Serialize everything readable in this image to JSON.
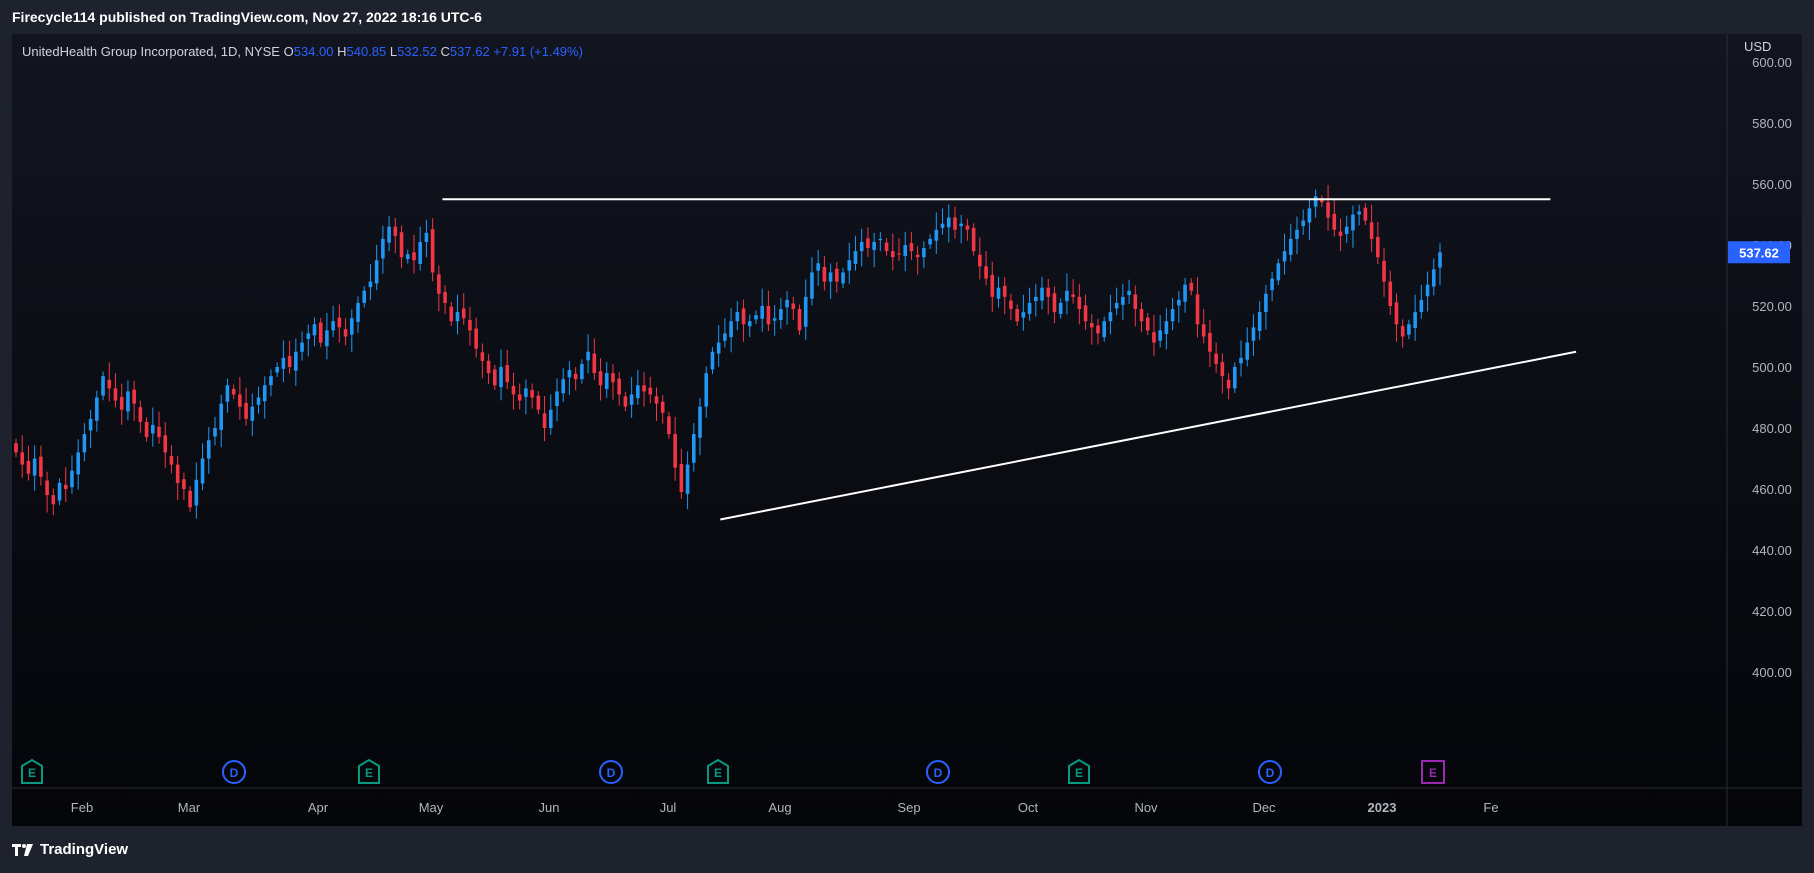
{
  "header": {
    "text": "Firecycle114 published on TradingView.com, Nov 27, 2022 18:16 UTC-6"
  },
  "legend": {
    "symbol": "UnitedHealth Group Incorporated, 1D, NYSE",
    "o_label": "O",
    "o_value": "534.00",
    "h_label": "H",
    "h_value": "540.85",
    "l_label": "L",
    "l_value": "532.52",
    "c_label": "C",
    "c_value": "537.62",
    "change": "+7.91 (+1.49%)"
  },
  "price_axis": {
    "currency": "USD",
    "last_price": "537.62"
  },
  "event_markers": [
    {
      "label": "E",
      "kind": "earnings"
    },
    {
      "label": "D",
      "kind": "dividend"
    },
    {
      "label": "E",
      "kind": "earnings"
    },
    {
      "label": "D",
      "kind": "dividend"
    },
    {
      "label": "E",
      "kind": "earnings"
    },
    {
      "label": "D",
      "kind": "dividend"
    },
    {
      "label": "E",
      "kind": "earnings"
    },
    {
      "label": "D",
      "kind": "dividend"
    },
    {
      "label": "E",
      "kind": "earnings-upcoming"
    }
  ],
  "footer": {
    "brand": "TradingView",
    "logo_icon": "tradingview-logo-icon"
  },
  "colors": {
    "up": "#2196f3",
    "down": "#f23645",
    "accent": "#2962ff",
    "earnings": "#089981",
    "dividend": "#2962ff",
    "upcoming": "#9c27b0",
    "trendline": "#ffffff"
  },
  "chart_data": {
    "type": "candlestick",
    "title": "UnitedHealth Group Incorporated, 1D, NYSE",
    "ylim": [
      400,
      600
    ],
    "y_ticks": [
      "600.00",
      "580.00",
      "560.00",
      "540.00",
      "520.00",
      "500.00",
      "480.00",
      "460.00",
      "440.00",
      "420.00",
      "400.00"
    ],
    "x_tick_labels": [
      "Feb",
      "Mar",
      "Apr",
      "May",
      "Jun",
      "Jul",
      "Aug",
      "Sep",
      "Oct",
      "Nov",
      "Dec",
      "2023",
      "Fe"
    ],
    "grid": false,
    "closes": [
      472,
      468,
      465,
      470,
      464,
      458,
      455,
      462,
      460,
      466,
      472,
      478,
      483,
      490,
      497,
      493,
      489,
      486,
      492,
      488,
      482,
      477,
      481,
      477,
      472,
      468,
      462,
      460,
      454,
      463,
      470,
      476,
      480,
      488,
      494,
      491,
      487,
      483,
      487,
      490,
      494,
      497,
      500,
      503,
      500,
      505,
      508,
      511,
      514,
      508,
      512,
      515,
      513,
      510,
      516,
      521,
      525,
      528,
      535,
      542,
      546,
      543,
      536,
      537,
      535,
      541,
      544,
      531,
      524,
      521,
      515,
      518,
      516,
      512,
      506,
      502,
      498,
      494,
      500,
      495,
      491,
      489,
      493,
      490,
      486,
      480,
      486,
      492,
      496,
      499,
      496,
      501,
      505,
      498,
      494,
      498,
      495,
      491,
      487,
      491,
      494,
      492,
      491,
      488,
      485,
      478,
      467,
      459,
      468,
      478,
      487,
      498,
      505,
      508,
      511,
      515,
      518,
      514,
      515,
      517,
      520,
      514,
      516,
      519,
      522,
      519,
      512,
      523,
      531,
      534,
      528,
      531,
      528,
      531,
      535,
      538,
      541,
      539,
      541,
      542,
      538,
      536,
      537,
      540,
      538,
      536,
      539,
      542,
      545,
      547,
      549,
      545,
      547,
      545,
      538,
      533,
      529,
      523,
      526,
      523,
      519,
      515,
      518,
      521,
      523,
      526,
      523,
      518,
      521,
      525,
      523,
      519,
      515,
      513,
      511,
      515,
      518,
      521,
      523,
      525,
      519,
      515,
      512,
      508,
      512,
      515,
      519,
      522,
      527,
      525,
      514,
      510,
      505,
      501,
      497,
      493,
      500,
      503,
      508,
      513,
      518,
      524,
      529,
      534,
      538,
      542,
      545,
      548,
      552,
      556,
      554,
      549,
      545,
      543,
      546,
      550,
      551,
      548,
      542,
      536,
      528,
      520,
      514,
      510,
      514,
      518,
      522,
      527,
      532,
      537.62
    ],
    "trendlines": [
      {
        "kind": "horizontal",
        "x1": 0.251,
        "x2": 0.897,
        "y": 555
      },
      {
        "kind": "ascending",
        "x1": 0.413,
        "y1": 450,
        "x2": 0.912,
        "y2": 505
      }
    ]
  }
}
